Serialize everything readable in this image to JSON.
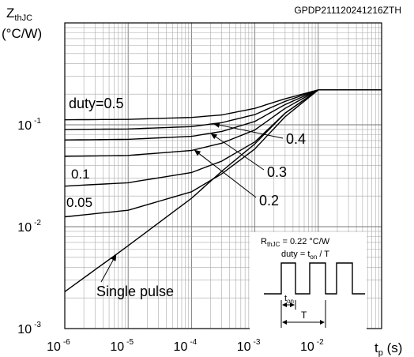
{
  "chart_data": {
    "type": "line",
    "code": "GPDP211120241216ZTH",
    "ylabel": {
      "main": "Z",
      "sub": "thJC",
      "unit": "(°C/W)"
    },
    "xlabel": {
      "main": "t",
      "sub": "p",
      "unit": " (s)"
    },
    "x_scale": "log",
    "y_scale": "log",
    "xlim": [
      1e-06,
      0.1
    ],
    "ylim": [
      0.001,
      1
    ],
    "x_ticks": [
      {
        "base": "10",
        "exp": "-6"
      },
      {
        "base": "10",
        "exp": "-5"
      },
      {
        "base": "10",
        "exp": "-4"
      },
      {
        "base": "10",
        "exp": "-3"
      },
      {
        "base": "10",
        "exp": "-2"
      }
    ],
    "y_ticks": [
      {
        "base": "10",
        "exp": "-3"
      },
      {
        "base": "10",
        "exp": "-2"
      },
      {
        "base": "10",
        "exp": "-1"
      }
    ],
    "grid": true,
    "series": [
      {
        "name": "duty=0.5",
        "x": [
          1e-06,
          1e-05,
          0.0001,
          0.0003,
          0.001,
          0.003,
          0.01,
          0.1
        ],
        "y": [
          0.112,
          0.113,
          0.118,
          0.125,
          0.145,
          0.18,
          0.22,
          0.22
        ]
      },
      {
        "name": "0.4",
        "x": [
          1e-06,
          1e-05,
          0.0001,
          0.0003,
          0.001,
          0.003,
          0.01,
          0.1
        ],
        "y": [
          0.09,
          0.091,
          0.096,
          0.105,
          0.126,
          0.17,
          0.22,
          0.22
        ]
      },
      {
        "name": "0.3",
        "x": [
          1e-06,
          1e-05,
          0.0001,
          0.0003,
          0.001,
          0.003,
          0.01,
          0.1
        ],
        "y": [
          0.071,
          0.072,
          0.077,
          0.086,
          0.108,
          0.158,
          0.22,
          0.22
        ]
      },
      {
        "name": "0.2",
        "x": [
          1e-06,
          1e-05,
          0.0001,
          0.0003,
          0.001,
          0.003,
          0.01,
          0.1
        ],
        "y": [
          0.049,
          0.05,
          0.056,
          0.066,
          0.089,
          0.145,
          0.22,
          0.22
        ]
      },
      {
        "name": "0.1",
        "x": [
          1e-06,
          1e-05,
          0.0001,
          0.0003,
          0.001,
          0.003,
          0.01,
          0.1
        ],
        "y": [
          0.025,
          0.027,
          0.034,
          0.044,
          0.068,
          0.13,
          0.22,
          0.22
        ]
      },
      {
        "name": "0.05",
        "x": [
          1e-06,
          1e-05,
          0.0001,
          0.0003,
          0.001,
          0.003,
          0.01,
          0.1
        ],
        "y": [
          0.0125,
          0.0145,
          0.022,
          0.033,
          0.058,
          0.12,
          0.22,
          0.22
        ]
      },
      {
        "name": "Single pulse",
        "x": [
          1e-06,
          1e-05,
          0.0001,
          0.0003,
          0.001,
          0.003,
          0.01,
          0.1
        ],
        "y": [
          0.0023,
          0.0065,
          0.019,
          0.035,
          0.065,
          0.13,
          0.22,
          0.22
        ]
      }
    ],
    "inset": {
      "rth_main": "R",
      "rth_sub": "thJC",
      "rth_value": " = 0.22 °C/W",
      "duty_pre": "duty = t",
      "duty_sub": "on",
      "duty_post": " / T",
      "ton_main": "t",
      "ton_sub": "on",
      "period_label": "T"
    }
  }
}
